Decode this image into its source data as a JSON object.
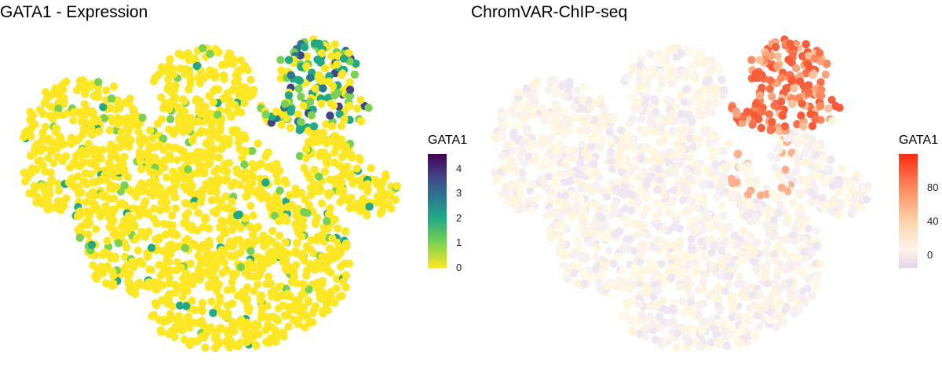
{
  "chart_data": [
    {
      "type": "scatter",
      "title": "GATA1 - Expression",
      "legend": {
        "title": "GATA1",
        "placement": "right",
        "ticks": [
          "0",
          "1",
          "2",
          "3",
          "4"
        ],
        "range": [
          0,
          4.6
        ],
        "colors": [
          "#FDE725",
          "#7AD151",
          "#22A884",
          "#2A788E",
          "#414487",
          "#440154"
        ]
      },
      "axes_visible": false,
      "grid": false,
      "dominant_value": 0,
      "high_value_region": "top-right cluster"
    },
    {
      "type": "scatter",
      "title": "ChromVAR-ChIP-seq",
      "legend": {
        "title": "GATA1",
        "placement": "right",
        "ticks": [
          "0",
          "40",
          "80"
        ],
        "range": [
          -15,
          120
        ],
        "colors": [
          "#E2D5EA",
          "#FFF4E8",
          "#FDD0A8",
          "#FC8A5E",
          "#FF2A10"
        ]
      },
      "axes_visible": false,
      "grid": false,
      "dominant_value": 0,
      "high_value_region": "top-right cluster"
    }
  ]
}
